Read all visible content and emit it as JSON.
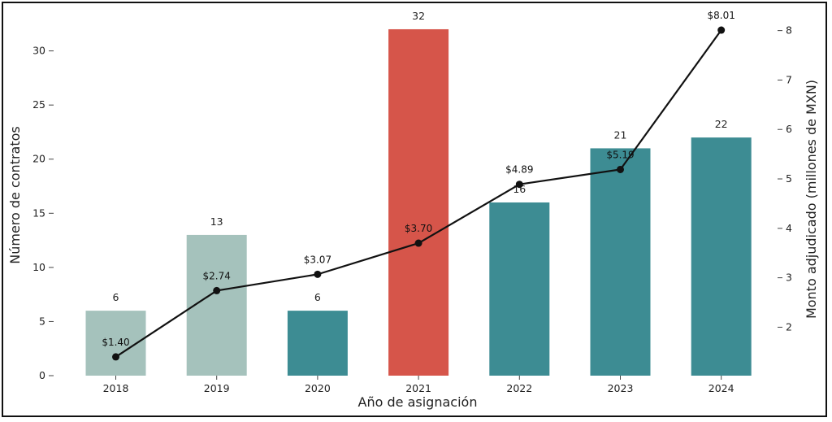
{
  "chart_data": {
    "type": "bar",
    "categories": [
      "2018",
      "2019",
      "2020",
      "2021",
      "2022",
      "2023",
      "2024"
    ],
    "series": [
      {
        "values": [
          6,
          13,
          6,
          32,
          16,
          21,
          22
        ],
        "axis": "left",
        "type": "bar"
      },
      {
        "values": [
          1.4,
          2.74,
          3.07,
          3.7,
          4.89,
          5.19,
          8.01
        ],
        "axis": "right",
        "type": "line",
        "labels": [
          "$1.40",
          "$2.74",
          "$3.07",
          "$3.70",
          "$4.89",
          "$5.19",
          "$8.01"
        ]
      }
    ],
    "bar_labels": [
      "6",
      "13",
      "6",
      "32",
      "16",
      "21",
      "22"
    ],
    "bar_colors": [
      "#a5c2bc",
      "#a5c2bc",
      "#3d8c93",
      "#d6554a",
      "#3d8c93",
      "#3d8c93",
      "#3d8c93"
    ],
    "line_color": "#111111",
    "xlabel": "Año de asignación",
    "ylabel": "Número de contratos",
    "y2label": "Monto adjudicado (millones de MXN)",
    "ylim": [
      0,
      33.2
    ],
    "y2lim": [
      1.02,
      8.29
    ],
    "yticks": [
      "0",
      "5",
      "10",
      "15",
      "20",
      "25",
      "30"
    ],
    "y2ticks": [
      "2",
      "3",
      "4",
      "5",
      "6",
      "7",
      "8"
    ],
    "grid": false
  }
}
